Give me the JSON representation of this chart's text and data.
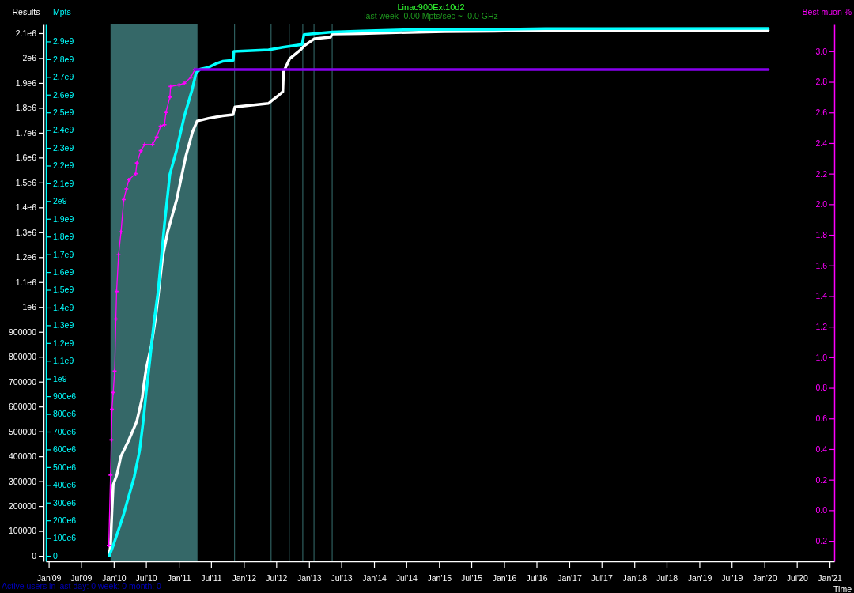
{
  "chart_data": {
    "type": "line",
    "title": "Linac900Ext10d2",
    "subtitle": "last week -0.00 Mpts/sec ~ -0.0 GHz",
    "xlabel": "Time",
    "ylabel": "Results",
    "y2label": "Mpts",
    "y3label": "Best muon %",
    "annotations": [
      "Active users in last day: 0 week: 0 month: 0"
    ],
    "xlim": [
      "2008-12-16",
      "2021-01-27"
    ],
    "xticks": [
      {
        "value": "2009-01-01",
        "label": "Jan'09"
      },
      {
        "value": "2009-07-01",
        "label": "Jul'09"
      },
      {
        "value": "2010-01-01",
        "label": "Jan'10"
      },
      {
        "value": "2010-07-01",
        "label": "Jul'10"
      },
      {
        "value": "2011-01-01",
        "label": "Jan'11"
      },
      {
        "value": "2011-07-01",
        "label": "Jul'11"
      },
      {
        "value": "2012-01-01",
        "label": "Jan'12"
      },
      {
        "value": "2012-07-01",
        "label": "Jul'12"
      },
      {
        "value": "2013-01-01",
        "label": "Jan'13"
      },
      {
        "value": "2013-07-01",
        "label": "Jul'13"
      },
      {
        "value": "2014-01-01",
        "label": "Jan'14"
      },
      {
        "value": "2014-07-01",
        "label": "Jul'14"
      },
      {
        "value": "2015-01-01",
        "label": "Jan'15"
      },
      {
        "value": "2015-07-01",
        "label": "Jul'15"
      },
      {
        "value": "2016-01-01",
        "label": "Jan'16"
      },
      {
        "value": "2016-07-01",
        "label": "Jul'16"
      },
      {
        "value": "2017-01-01",
        "label": "Jan'17"
      },
      {
        "value": "2017-07-01",
        "label": "Jul'17"
      },
      {
        "value": "2018-01-01",
        "label": "Jan'18"
      },
      {
        "value": "2018-07-01",
        "label": "Jul'18"
      },
      {
        "value": "2019-01-01",
        "label": "Jan'19"
      },
      {
        "value": "2019-07-01",
        "label": "Jul'19"
      },
      {
        "value": "2020-01-01",
        "label": "Jan'20"
      },
      {
        "value": "2020-07-01",
        "label": "Jul'20"
      },
      {
        "value": "2021-01-01",
        "label": "Jan'21"
      }
    ],
    "ylim": [
      -22000,
      2138000
    ],
    "yticks": [
      0,
      100000,
      200000,
      300000,
      400000,
      500000,
      600000,
      700000,
      800000,
      900000,
      {
        "value": 1000000,
        "label": "1e6"
      },
      {
        "value": 1100000,
        "label": "1.1e6"
      },
      {
        "value": 1200000,
        "label": "1.2e6"
      },
      {
        "value": 1300000,
        "label": "1.3e6"
      },
      {
        "value": 1400000,
        "label": "1.4e6"
      },
      {
        "value": 1500000,
        "label": "1.5e6"
      },
      {
        "value": 1600000,
        "label": "1.6e6"
      },
      {
        "value": 1700000,
        "label": "1.7e6"
      },
      {
        "value": 1800000,
        "label": "1.8e6"
      },
      {
        "value": 1900000,
        "label": "1.9e6"
      },
      {
        "value": 2000000,
        "label": "2e6"
      },
      {
        "value": 2100000,
        "label": "2.1e6"
      }
    ],
    "y2lim": [
      -31000000,
      3000000000
    ],
    "y2ticks": [
      0,
      {
        "value": 100000000,
        "label": "100e6"
      },
      {
        "value": 200000000,
        "label": "200e6"
      },
      {
        "value": 300000000,
        "label": "300e6"
      },
      {
        "value": 400000000,
        "label": "400e6"
      },
      {
        "value": 500000000,
        "label": "500e6"
      },
      {
        "value": 600000000,
        "label": "600e6"
      },
      {
        "value": 700000000,
        "label": "700e6"
      },
      {
        "value": 800000000,
        "label": "800e6"
      },
      {
        "value": 900000000,
        "label": "900e6"
      },
      {
        "value": 1000000000,
        "label": "1e9"
      },
      {
        "value": 1100000000,
        "label": "1.1e9"
      },
      {
        "value": 1200000000,
        "label": "1.2e9"
      },
      {
        "value": 1300000000,
        "label": "1.3e9"
      },
      {
        "value": 1400000000,
        "label": "1.4e9"
      },
      {
        "value": 1500000000,
        "label": "1.5e9"
      },
      {
        "value": 1600000000,
        "label": "1.6e9"
      },
      {
        "value": 1700000000,
        "label": "1.7e9"
      },
      {
        "value": 1800000000,
        "label": "1.8e9"
      },
      {
        "value": 1900000000,
        "label": "1.9e9"
      },
      {
        "value": 2000000000,
        "label": "2e9"
      },
      {
        "value": 2100000000,
        "label": "2.1e9"
      },
      {
        "value": 2200000000,
        "label": "2.2e9"
      },
      {
        "value": 2300000000,
        "label": "2.3e9"
      },
      {
        "value": 2400000000,
        "label": "2.4e9"
      },
      {
        "value": 2500000000,
        "label": "2.5e9"
      },
      {
        "value": 2600000000,
        "label": "2.6e9"
      },
      {
        "value": 2700000000,
        "label": "2.7e9"
      },
      {
        "value": 2800000000,
        "label": "2.8e9"
      },
      {
        "value": 2900000000,
        "label": "2.9e9"
      }
    ],
    "y3lim": [
      -0.334,
      3.18
    ],
    "y3ticks": [
      -0.2,
      {
        "value": 0,
        "label": "0.0"
      },
      0.2,
      0.4,
      0.6,
      0.8,
      {
        "value": 1,
        "label": "1.0"
      },
      1.2,
      1.4,
      1.6,
      1.8,
      {
        "value": 2,
        "label": "2.0"
      },
      2.2,
      2.4,
      2.6,
      2.8,
      {
        "value": 3,
        "label": "3.0"
      }
    ],
    "bands": [
      {
        "axis": "x",
        "from": "2009-12-14",
        "to": "2011-04-16",
        "color": "#356868"
      }
    ],
    "ref_lines": [
      {
        "axis": "x",
        "value": "2011-11-10",
        "color": "#2e5e5e"
      },
      {
        "axis": "x",
        "value": "2012-06-02",
        "color": "#2e5e5e"
      },
      {
        "axis": "x",
        "value": "2012-09-12",
        "color": "#2e5e5e"
      },
      {
        "axis": "x",
        "value": "2012-11-27",
        "color": "#2e5e5e"
      },
      {
        "axis": "x",
        "value": "2013-01-29",
        "color": "#2e5e5e"
      },
      {
        "axis": "x",
        "value": "2013-05-11",
        "color": "#2e5e5e"
      }
    ],
    "series": [
      {
        "color": "#ffffff",
        "x": [
          "2009-12-05",
          "2009-12-14",
          "2009-12-22",
          "2009-12-29",
          "2010-01-19",
          "2010-02-10",
          "2010-03-26",
          "2010-05-10",
          "2010-06-10",
          "2010-06-17",
          "2010-07-02",
          "2010-07-31",
          "2010-08-23",
          "2010-09-06",
          "2010-10-03",
          "2010-11-01",
          "2010-12-21",
          "2011-02-08",
          "2011-03-19",
          "2011-04-14",
          "2011-06-17",
          "2011-09-04",
          "2011-11-02",
          "2011-11-12",
          "2012-05-19",
          "2012-06-08",
          "2012-07-17",
          "2012-08-07",
          "2012-08-11",
          "2012-09-15",
          "2012-11-14",
          "2012-12-04",
          "2013-02-01",
          "2013-05-02",
          "2013-05-11",
          "2013-10-22",
          "2014-02-14",
          "2015-01-30",
          "2015-11-06",
          "2016-08-29",
          "2020-01-23"
        ],
        "values": [
          0,
          41000,
          178000,
          286000,
          327000,
          400000,
          464000,
          540000,
          635000,
          677000,
          750000,
          845000,
          953000,
          1036000,
          1204000,
          1306000,
          1433000,
          1601000,
          1703000,
          1747000,
          1758000,
          1768000,
          1773000,
          1804000,
          1818000,
          1830000,
          1852000,
          1865000,
          1944000,
          1998000,
          2033000,
          2049000,
          2078000,
          2084000,
          2097000,
          2098000,
          2101000,
          2106000,
          2108000,
          2112000,
          2112000
        ]
      },
      {
        "color": "#00ffff",
        "axis": "y2",
        "x": [
          "2009-12-07",
          "2009-12-29",
          "2010-01-28",
          "2010-02-26",
          "2010-03-27",
          "2010-04-26",
          "2010-05-26",
          "2010-06-17",
          "2010-07-02",
          "2010-07-24",
          "2010-08-15",
          "2010-09-06",
          "2010-10-13",
          "2010-11-12",
          "2010-12-19",
          "2011-02-01",
          "2011-03-17",
          "2011-04-08",
          "2011-05-01",
          "2011-06-17",
          "2011-07-27",
          "2011-09-04",
          "2011-11-03",
          "2011-11-06",
          "2012-05-19",
          "2012-08-07",
          "2012-11-23",
          "2012-12-04",
          "2013-05-11",
          "2013-10-26",
          "2014-09-10",
          "2015-11-06",
          "2016-08-20",
          "2020-01-23"
        ],
        "values": [
          0,
          58000000,
          147000000,
          236000000,
          339000000,
          445000000,
          592000000,
          771000000,
          918000000,
          1114000000,
          1318000000,
          1483000000,
          1871000000,
          2151000000,
          2285000000,
          2477000000,
          2628000000,
          2722000000,
          2744000000,
          2754000000,
          2774000000,
          2788000000,
          2794000000,
          2844000000,
          2853000000,
          2867000000,
          2883000000,
          2939000000,
          2953000000,
          2959000000,
          2968000000,
          2968000000,
          2972000000,
          2973000000
        ]
      },
      {
        "color": "#ff00ff",
        "axis": "y3",
        "marker": "cross",
        "x": [
          "2009-12-04",
          "2009-12-14",
          "2009-12-19",
          "2009-12-22",
          "2009-12-29",
          "2010-01-06",
          "2010-01-13",
          "2010-01-17",
          "2010-01-28",
          "2010-02-11",
          "2010-02-26",
          "2010-03-13",
          "2010-03-27",
          "2010-05-04",
          "2010-05-11",
          "2010-06-02",
          "2010-06-24",
          "2010-08-07",
          "2010-08-30",
          "2010-09-21",
          "2010-10-13",
          "2010-10-21",
          "2010-11-12",
          "2010-11-16",
          "2011-01-03",
          "2011-02-01",
          "2011-03-10",
          "2011-04-01"
        ],
        "values": [
          -0.23,
          0.23,
          0.46,
          0.66,
          0.77,
          0.91,
          1.25,
          1.43,
          1.67,
          1.82,
          2.03,
          2.1,
          2.16,
          2.2,
          2.27,
          2.35,
          2.39,
          2.39,
          2.44,
          2.51,
          2.52,
          2.6,
          2.7,
          2.77,
          2.78,
          2.79,
          2.83,
          2.88
        ]
      },
      {
        "color": "#8800ee",
        "axis": "y3",
        "x": [
          "2011-04-01",
          "2020-01-23"
        ],
        "values": [
          2.88,
          2.88
        ]
      }
    ]
  }
}
